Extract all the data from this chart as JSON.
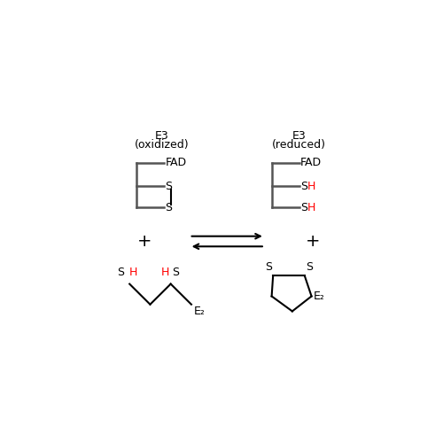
{
  "bg_color": "#ffffff",
  "black": "#000000",
  "red": "#ff0000",
  "gray": "#555555",
  "e3_ox_line1": "E3",
  "e3_ox_line2": "(oxidized)",
  "e3_red_line1": "E3",
  "e3_red_line2": "(reduced)",
  "fad_label": "FAD",
  "e2_label": "E₂",
  "lw": 1.5,
  "fs": 9,
  "fig_w": 5.0,
  "fig_h": 4.9,
  "dpi": 100
}
